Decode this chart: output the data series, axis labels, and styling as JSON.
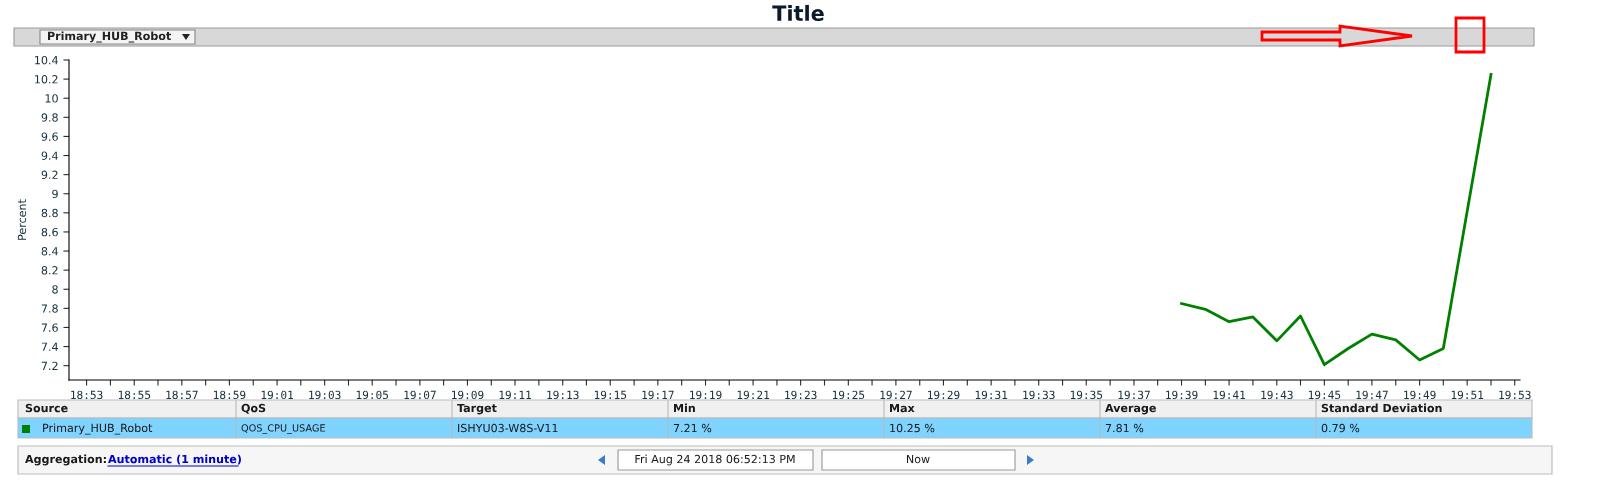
{
  "chart_data": {
    "type": "line",
    "title": "Title",
    "ylabel": "Percent",
    "x": [
      19.65,
      19.6667,
      19.6833,
      19.7,
      19.7167,
      19.7333,
      19.75,
      19.7667,
      19.7833,
      19.8,
      19.8167,
      19.8333,
      19.8667
    ],
    "series": [
      {
        "name": "Primary_HUB_Robot",
        "color": "#008000",
        "values": [
          7.85,
          7.79,
          7.66,
          7.71,
          7.46,
          7.72,
          7.21,
          7.38,
          7.53,
          7.47,
          7.26,
          7.38,
          10.25
        ]
      }
    ],
    "xlim": [
      18.871,
      19.887
    ],
    "xticks": [
      {
        "value": 18.8833,
        "label": "18:53"
      },
      {
        "value": 18.9,
        "label": null
      },
      {
        "value": 18.9167,
        "label": "18:55"
      },
      {
        "value": 18.9333,
        "label": null
      },
      {
        "value": 18.95,
        "label": "18:57"
      },
      {
        "value": 18.9667,
        "label": null
      },
      {
        "value": 18.9833,
        "label": "18:59"
      },
      {
        "value": 19.0,
        "label": null
      },
      {
        "value": 19.0167,
        "label": "19:01"
      },
      {
        "value": 19.0333,
        "label": null
      },
      {
        "value": 19.05,
        "label": "19:03"
      },
      {
        "value": 19.0667,
        "label": null
      },
      {
        "value": 19.0833,
        "label": "19:05"
      },
      {
        "value": 19.1,
        "label": null
      },
      {
        "value": 19.1167,
        "label": "19:07"
      },
      {
        "value": 19.1333,
        "label": null
      },
      {
        "value": 19.15,
        "label": "19:09"
      },
      {
        "value": 19.1667,
        "label": null
      },
      {
        "value": 19.1833,
        "label": "19:11"
      },
      {
        "value": 19.2,
        "label": null
      },
      {
        "value": 19.2167,
        "label": "19:13"
      },
      {
        "value": 19.2333,
        "label": null
      },
      {
        "value": 19.25,
        "label": "19:15"
      },
      {
        "value": 19.2667,
        "label": null
      },
      {
        "value": 19.2833,
        "label": "19:17"
      },
      {
        "value": 19.3,
        "label": null
      },
      {
        "value": 19.3167,
        "label": "19:19"
      },
      {
        "value": 19.3333,
        "label": null
      },
      {
        "value": 19.35,
        "label": "19:21"
      },
      {
        "value": 19.3667,
        "label": null
      },
      {
        "value": 19.3833,
        "label": "19:23"
      },
      {
        "value": 19.4,
        "label": null
      },
      {
        "value": 19.4167,
        "label": "19:25"
      },
      {
        "value": 19.4333,
        "label": null
      },
      {
        "value": 19.45,
        "label": "19:27"
      },
      {
        "value": 19.4667,
        "label": null
      },
      {
        "value": 19.4833,
        "label": "19:29"
      },
      {
        "value": 19.5,
        "label": null
      },
      {
        "value": 19.5167,
        "label": "19:31"
      },
      {
        "value": 19.5333,
        "label": null
      },
      {
        "value": 19.55,
        "label": "19:33"
      },
      {
        "value": 19.5667,
        "label": null
      },
      {
        "value": 19.5833,
        "label": "19:35"
      },
      {
        "value": 19.6,
        "label": null
      },
      {
        "value": 19.6167,
        "label": "19:37"
      },
      {
        "value": 19.6333,
        "label": null
      },
      {
        "value": 19.65,
        "label": "19:39"
      },
      {
        "value": 19.6667,
        "label": null
      },
      {
        "value": 19.6833,
        "label": "19:41"
      },
      {
        "value": 19.7,
        "label": null
      },
      {
        "value": 19.7167,
        "label": "19:43"
      },
      {
        "value": 19.7333,
        "label": null
      },
      {
        "value": 19.75,
        "label": "19:45"
      },
      {
        "value": 19.7667,
        "label": null
      },
      {
        "value": 19.7833,
        "label": "19:47"
      },
      {
        "value": 19.8,
        "label": null
      },
      {
        "value": 19.8167,
        "label": "19:49"
      },
      {
        "value": 19.8333,
        "label": null
      },
      {
        "value": 19.85,
        "label": "19:51"
      },
      {
        "value": 19.8667,
        "label": null
      },
      {
        "value": 19.8833,
        "label": "19:53"
      }
    ],
    "ylim": [
      7.05,
      10.4
    ],
    "yticks": [
      7.2,
      7.4,
      7.6,
      7.8,
      8,
      8.2,
      8.4,
      8.6,
      8.8,
      9,
      9.2,
      9.4,
      9.6,
      9.8,
      10,
      10.2,
      10.4
    ],
    "grid": false,
    "legend": "bottom",
    "marker": "none",
    "line_style": "solid",
    "annotations": [
      "Primary_HUB_Robot",
      "Source",
      "QoS",
      "Target",
      "Min",
      "Max",
      "Average",
      "Standard Deviation",
      "QOS_CPU_USAGE",
      "ISHYU03-W8S-V11",
      "7.21 %",
      "10.25 %",
      "7.81 %",
      "0.79 %",
      "Aggregation:",
      "Automatic (1 minute)",
      "Fri Aug 24 2018 06:52:13 PM",
      "Now"
    ]
  }
}
